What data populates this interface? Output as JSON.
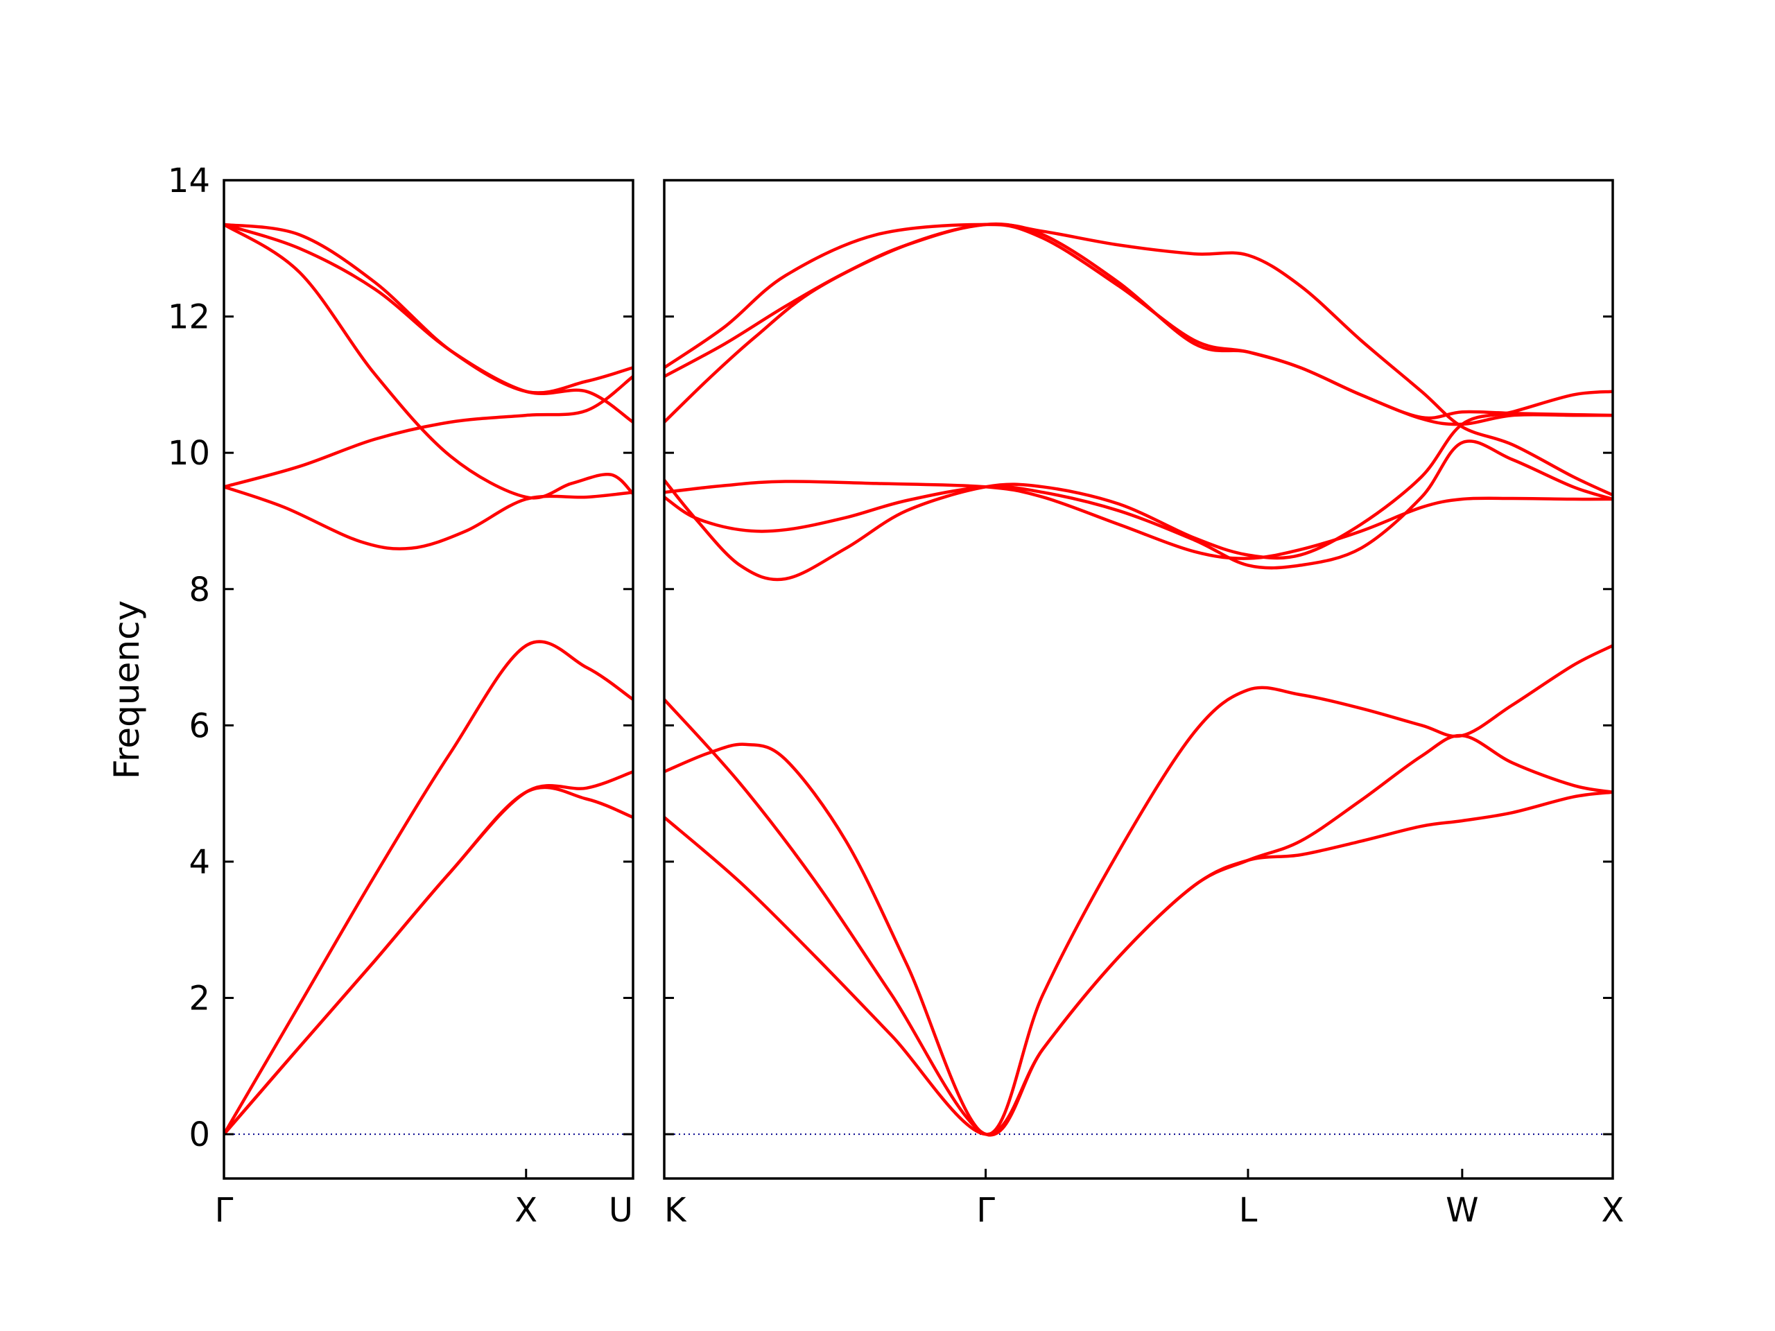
{
  "chart_data": {
    "type": "line",
    "title": "",
    "ylabel": "Frequency",
    "ylim": [
      -0.65,
      14
    ],
    "yticks": [
      0,
      2,
      4,
      6,
      8,
      10,
      12,
      14
    ],
    "band_color": "#ff0000",
    "zero_line_color": "#00008b",
    "panels": [
      {
        "xrange": [
          0,
          1.354
        ],
        "ticks": [
          {
            "pos": 0,
            "label": "Γ"
          },
          {
            "pos": 1.0,
            "label": "X"
          },
          {
            "pos": 1.354,
            "label": "U"
          }
        ],
        "bands": [
          {
            "x": [
              0,
              0.25,
              0.5,
              0.75,
              1.0,
              1.2,
              1.354
            ],
            "y": [
              0,
              1.28,
              2.55,
              3.85,
              5.02,
              5.08,
              5.32
            ]
          },
          {
            "x": [
              0,
              0.25,
              0.5,
              0.75,
              1.0,
              1.2,
              1.354
            ],
            "y": [
              0,
              1.9,
              3.8,
              5.6,
              7.17,
              6.85,
              6.38
            ]
          },
          {
            "x": [
              0,
              0.25,
              0.5,
              0.75,
              1.0,
              1.2,
              1.354
            ],
            "y": [
              0,
              1.28,
              2.55,
              3.85,
              5.02,
              4.92,
              4.65
            ]
          },
          {
            "x": [
              0,
              0.2,
              0.45,
              0.62,
              0.8,
              1.0,
              1.2,
              1.354
            ],
            "y": [
              9.5,
              9.2,
              8.7,
              8.6,
              8.85,
              9.32,
              9.35,
              9.42
            ]
          },
          {
            "x": [
              0,
              0.25,
              0.5,
              0.75,
              1.0,
              1.2,
              1.354
            ],
            "y": [
              9.5,
              9.8,
              10.2,
              10.45,
              10.55,
              10.62,
              11.12
            ]
          },
          {
            "x": [
              0,
              0.25,
              0.5,
              0.75,
              1.0,
              1.15,
              1.28,
              1.354
            ],
            "y": [
              13.35,
              12.65,
              11.15,
              9.95,
              9.35,
              9.55,
              9.68,
              9.4
            ]
          },
          {
            "x": [
              0,
              0.25,
              0.5,
              0.75,
              1.0,
              1.2,
              1.354
            ],
            "y": [
              13.35,
              13.0,
              12.4,
              11.5,
              10.9,
              10.9,
              10.45
            ]
          },
          {
            "x": [
              0,
              0.25,
              0.5,
              0.75,
              1.0,
              1.2,
              1.354
            ],
            "y": [
              13.35,
              13.2,
              12.5,
              11.5,
              10.9,
              11.05,
              11.25
            ]
          }
        ]
      },
      {
        "xrange": [
          0,
          3.131
        ],
        "ticks": [
          {
            "pos": 0,
            "label": "K"
          },
          {
            "pos": 1.061,
            "label": "Γ"
          },
          {
            "pos": 1.927,
            "label": "L"
          },
          {
            "pos": 2.634,
            "label": "W"
          },
          {
            "pos": 3.131,
            "label": "X"
          }
        ],
        "bands": [
          {
            "x": [
              0,
              0.25,
              0.5,
              0.75,
              1.061,
              1.25,
              1.5,
              1.75,
              1.927,
              2.1,
              2.3,
              2.5,
              2.634,
              2.8,
              3.0,
              3.131
            ],
            "y": [
              4.65,
              3.7,
              2.6,
              1.45,
              0,
              1.25,
              2.6,
              3.65,
              4.02,
              4.1,
              4.3,
              4.52,
              4.6,
              4.72,
              4.95,
              5.02
            ]
          },
          {
            "x": [
              0,
              0.25,
              0.5,
              0.75,
              1.061,
              1.25,
              1.5,
              1.75,
              1.927,
              2.1,
              2.3,
              2.5,
              2.634,
              2.8,
              3.0,
              3.131
            ],
            "y": [
              6.38,
              5.15,
              3.7,
              2.05,
              0,
              1.25,
              2.6,
              3.65,
              4.02,
              4.3,
              4.9,
              5.55,
              5.85,
              5.45,
              5.12,
              5.02
            ]
          },
          {
            "x": [
              0,
              0.15,
              0.27,
              0.4,
              0.6,
              0.8,
              1.061,
              1.25,
              1.5,
              1.75,
              1.927,
              2.1,
              2.3,
              2.5,
              2.634,
              2.8,
              3.0,
              3.131
            ],
            "y": [
              5.32,
              5.6,
              5.72,
              5.5,
              4.3,
              2.5,
              0,
              2.05,
              4.15,
              5.9,
              6.52,
              6.45,
              6.25,
              6.0,
              5.85,
              6.3,
              6.88,
              7.17
            ]
          },
          {
            "x": [
              0,
              0.2,
              0.4,
              0.7,
              1.061,
              1.25,
              1.5,
              1.75,
              1.927,
              2.1,
              2.3,
              2.5,
              2.634,
              2.8,
              3.0,
              3.131
            ],
            "y": [
              9.42,
              9.52,
              9.58,
              9.55,
              9.5,
              9.35,
              8.95,
              8.55,
              8.45,
              8.58,
              8.85,
              9.2,
              9.32,
              9.33,
              9.32,
              9.32
            ]
          },
          {
            "x": [
              0,
              0.1,
              0.25,
              0.4,
              0.6,
              0.8,
              1.061,
              1.25,
              1.5,
              1.75,
              1.927,
              2.1,
              2.3,
              2.5,
              2.634,
              2.8,
              3.0,
              3.131
            ],
            "y": [
              9.35,
              9.05,
              8.87,
              8.87,
              9.05,
              9.3,
              9.5,
              9.42,
              9.15,
              8.72,
              8.35,
              8.35,
              8.6,
              9.35,
              10.15,
              9.9,
              9.5,
              9.32
            ]
          },
          {
            "x": [
              0,
              0.1,
              0.25,
              0.4,
              0.6,
              0.8,
              1.061,
              1.25,
              1.5,
              1.75,
              1.927,
              2.1,
              2.3,
              2.5,
              2.634,
              2.8,
              3.0,
              3.131
            ],
            "y": [
              9.6,
              9.05,
              8.35,
              8.15,
              8.6,
              9.15,
              9.5,
              9.5,
              9.25,
              8.75,
              8.5,
              8.5,
              8.95,
              9.65,
              10.42,
              10.6,
              10.85,
              10.9
            ]
          },
          {
            "x": [
              0,
              0.15,
              0.3,
              0.5,
              0.8,
              1.061,
              1.25,
              1.5,
              1.75,
              1.927,
              2.1,
              2.3,
              2.5,
              2.634,
              2.8,
              3.0,
              3.131
            ],
            "y": [
              10.45,
              11.1,
              11.7,
              12.4,
              13.05,
              13.35,
              13.25,
              13.05,
              12.92,
              12.9,
              12.45,
              11.65,
              10.9,
              10.38,
              10.12,
              9.65,
              9.38
            ]
          },
          {
            "x": [
              0,
              0.2,
              0.4,
              0.6,
              0.8,
              1.061,
              1.25,
              1.5,
              1.75,
              1.927,
              2.1,
              2.3,
              2.5,
              2.634,
              2.8,
              3.0,
              3.131
            ],
            "y": [
              11.12,
              11.6,
              12.15,
              12.65,
              13.05,
              13.35,
              13.15,
              12.45,
              11.65,
              11.48,
              11.25,
              10.85,
              10.5,
              10.42,
              10.55,
              10.55,
              10.55
            ]
          },
          {
            "x": [
              0,
              0.2,
              0.4,
              0.7,
              1.061,
              1.25,
              1.5,
              1.75,
              1.927,
              2.1,
              2.3,
              2.5,
              2.634,
              2.8,
              3.0,
              3.131
            ],
            "y": [
              11.25,
              11.85,
              12.6,
              13.2,
              13.35,
              13.2,
              12.5,
              11.6,
              11.48,
              11.25,
              10.85,
              10.52,
              10.6,
              10.58,
              10.56,
              10.55
            ]
          }
        ]
      }
    ]
  }
}
